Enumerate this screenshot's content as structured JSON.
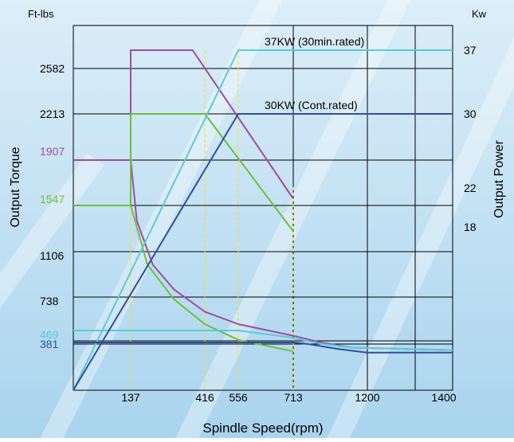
{
  "colors": {
    "background_top": "#dceef8",
    "background_bottom": "#a9d4ee",
    "grid": "#000000",
    "guide": "#ffe000",
    "purple": "#a24aa4",
    "green": "#6cc136",
    "cyan": "#5cc9d9",
    "blue": "#2d4fa1"
  },
  "chart_data": {
    "type": "line",
    "xlabel": "Spindle Speed(rpm)",
    "ylabel_left": "Output Torque",
    "ylabel_right": "Output Power",
    "unit_left": "Ft-lbs",
    "unit_right": "Kw",
    "xlim": [
      0,
      1400
    ],
    "x_ticks": [
      137,
      416,
      556,
      713,
      1200,
      1400
    ],
    "x_gridlines": [
      713,
      1200
    ],
    "y_ticks_left": [
      "2582",
      "2213",
      "1907",
      "1547",
      "1106",
      "738",
      "469",
      "381"
    ],
    "y_ticks_right": [
      "37",
      "30",
      "22",
      "18"
    ],
    "annotations": [
      "37KW (30min.rated)",
      "30KW (Cont.rated)"
    ],
    "series": [
      {
        "color": "#a24aa4",
        "label_value": "1907",
        "points": [
          [
            0,
            1907
          ],
          [
            137,
            1907
          ],
          [
            137,
            2800
          ],
          [
            370,
            2800
          ],
          [
            713,
            1600
          ]
        ]
      },
      {
        "color": "#a24aa4",
        "points": [
          [
            137,
            1907
          ],
          [
            160,
            1400
          ],
          [
            220,
            1000
          ],
          [
            300,
            800
          ],
          [
            416,
            620
          ],
          [
            556,
            520
          ],
          [
            713,
            430
          ],
          [
            900,
            380
          ],
          [
            1100,
            340
          ],
          [
            1400,
            320
          ]
        ]
      },
      {
        "color": "#6cc136",
        "label_value": "1547",
        "points": [
          [
            0,
            1547
          ],
          [
            137,
            1547
          ],
          [
            137,
            2213
          ],
          [
            416,
            2213
          ],
          [
            713,
            1300
          ]
        ]
      },
      {
        "color": "#6cc136",
        "points": [
          [
            137,
            1547
          ],
          [
            200,
            1000
          ],
          [
            300,
            720
          ],
          [
            416,
            520
          ],
          [
            556,
            400
          ],
          [
            713,
            310
          ]
        ]
      },
      {
        "color": "#5cc9d9",
        "label_value": "469",
        "points": [
          [
            0,
            469
          ],
          [
            556,
            469
          ],
          [
            700,
            420
          ],
          [
            900,
            370
          ],
          [
            1100,
            340
          ],
          [
            1400,
            320
          ]
        ]
      },
      {
        "color": "#5cc9d9",
        "points": [
          [
            0,
            0
          ],
          [
            556,
            2800
          ],
          [
            1400,
            2800
          ]
        ]
      },
      {
        "color": "#2d4fa1",
        "label_value": "381",
        "points": [
          [
            0,
            381
          ],
          [
            556,
            381
          ],
          [
            713,
            381
          ],
          [
            800,
            370
          ],
          [
            1000,
            330
          ],
          [
            1200,
            300
          ],
          [
            1400,
            300
          ]
        ]
      },
      {
        "color": "#2d4fa1",
        "points": [
          [
            0,
            0
          ],
          [
            556,
            2213
          ],
          [
            1400,
            2213
          ]
        ]
      }
    ]
  }
}
